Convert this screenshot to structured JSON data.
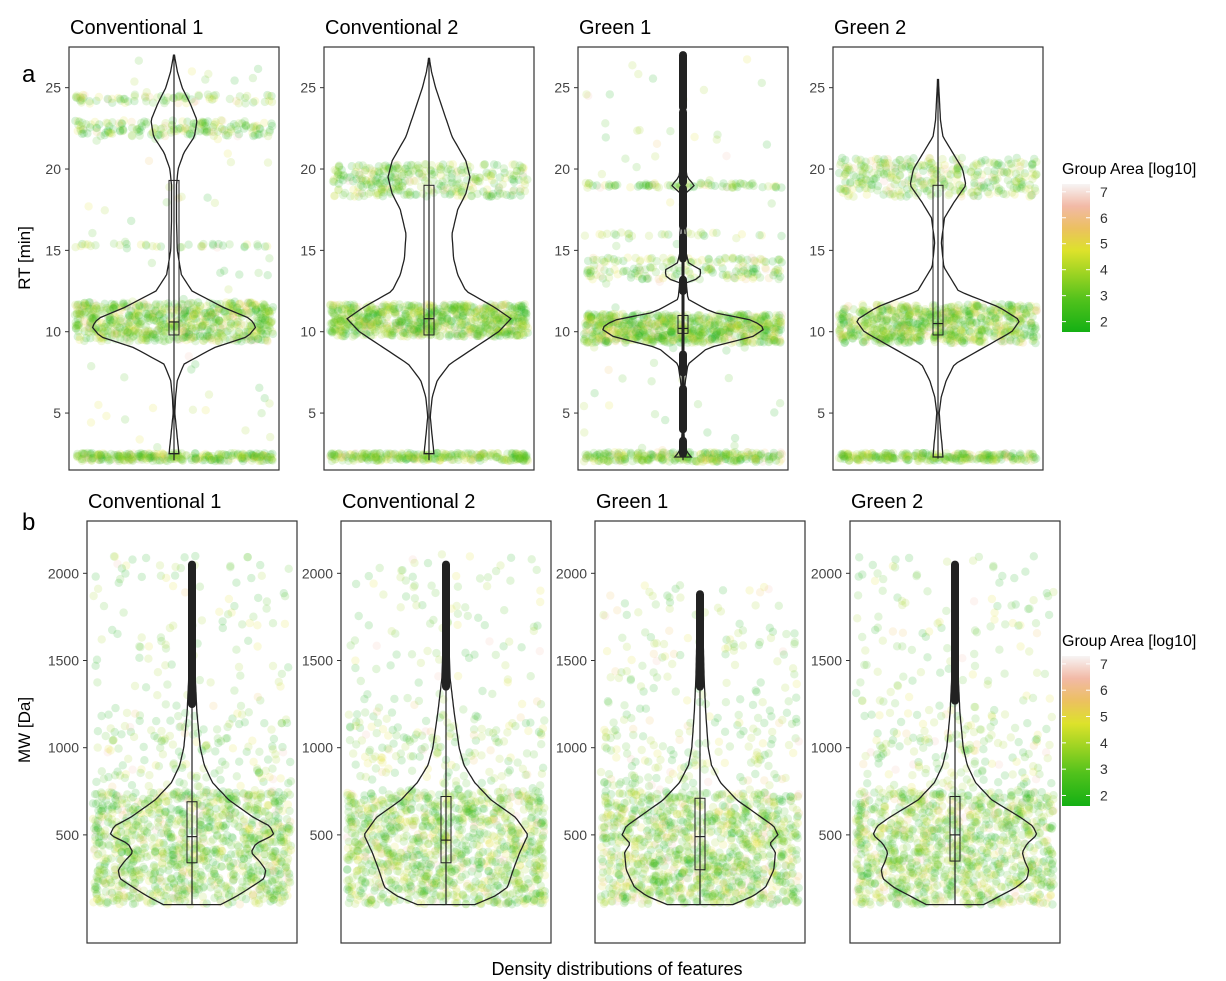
{
  "figure": {
    "caption": "Density distributions of features"
  },
  "colors": {
    "panel_border": "#333333",
    "violin": "#222222",
    "gradient": [
      "#14b014",
      "#52c21c",
      "#9fd423",
      "#dde22b",
      "#ecc060",
      "#f2b9a6",
      "#f7f4f4"
    ]
  },
  "chart_data": [
    {
      "type": "violin-jitter",
      "panel_letter": "a",
      "ylabel": "RT [min]",
      "ylim": [
        1.5,
        27.5
      ],
      "yticks": [
        5,
        10,
        15,
        20,
        25
      ],
      "grid": false,
      "legend_position": "right",
      "legend": {
        "title": "Group Area [log10]",
        "ticks": [
          2,
          3,
          4,
          5,
          6,
          7
        ],
        "range": [
          1.6,
          7.3
        ]
      },
      "facets": [
        {
          "title": "Conventional 1",
          "range": [
            2.1,
            27
          ],
          "bands": [
            {
              "y": 2.3,
              "half": 0.25,
              "w": 0.2
            },
            {
              "y": 10.6,
              "half": 1.2,
              "w": 0.55
            },
            {
              "y": 22.5,
              "half": 0.5,
              "w": 0.12
            },
            {
              "y": 24.3,
              "half": 0.3,
              "w": 0.06
            },
            {
              "y": 15.3,
              "half": 0.12,
              "w": 0.02
            }
          ],
          "median": 10.6,
          "q1": 9.8,
          "q3": 19.3,
          "violin": [
            [
              2.5,
              0.06
            ],
            [
              3,
              0.05
            ],
            [
              4,
              0.03
            ],
            [
              5,
              0.01
            ],
            [
              6,
              0.02
            ],
            [
              7,
              0.04
            ],
            [
              8,
              0.12
            ],
            [
              9,
              0.48
            ],
            [
              9.7,
              0.9
            ],
            [
              10.3,
              1.0
            ],
            [
              10.8,
              0.93
            ],
            [
              11.5,
              0.6
            ],
            [
              12.5,
              0.22
            ],
            [
              13.5,
              0.09
            ],
            [
              15,
              0.04
            ],
            [
              17,
              0.03
            ],
            [
              19,
              0.03
            ],
            [
              20,
              0.05
            ],
            [
              21,
              0.12
            ],
            [
              22,
              0.25
            ],
            [
              23,
              0.28
            ],
            [
              24,
              0.2
            ],
            [
              25,
              0.1
            ],
            [
              26,
              0.04
            ],
            [
              27,
              0.005
            ]
          ]
        },
        {
          "title": "Conventional 2",
          "range": [
            2.1,
            26.8
          ],
          "bands": [
            {
              "y": 2.3,
              "half": 0.25,
              "w": 0.2
            },
            {
              "y": 10.7,
              "half": 1.0,
              "w": 0.55
            },
            {
              "y": 19.3,
              "half": 1.0,
              "w": 0.3
            },
            {
              "y": 13.5,
              "half": 0.22,
              "w": 0.06
            },
            {
              "y": 23.2,
              "half": 0.3,
              "w": 0.08
            },
            {
              "y": 21.5,
              "half": 0.25,
              "w": 0.04
            }
          ],
          "median": 10.8,
          "q1": 9.8,
          "q3": 19.0,
          "violin": [
            [
              2.5,
              0.06
            ],
            [
              3,
              0.05
            ],
            [
              4,
              0.03
            ],
            [
              4.8,
              0.015
            ],
            [
              6,
              0.04
            ],
            [
              7,
              0.1
            ],
            [
              8,
              0.25
            ],
            [
              9,
              0.55
            ],
            [
              10,
              0.85
            ],
            [
              10.8,
              1.0
            ],
            [
              11.5,
              0.8
            ],
            [
              12.5,
              0.45
            ],
            [
              13.5,
              0.35
            ],
            [
              14.5,
              0.3
            ],
            [
              16,
              0.28
            ],
            [
              17.5,
              0.35
            ],
            [
              18.5,
              0.45
            ],
            [
              19.5,
              0.5
            ],
            [
              20.5,
              0.45
            ],
            [
              22,
              0.28
            ],
            [
              23.5,
              0.18
            ],
            [
              25,
              0.08
            ],
            [
              26,
              0.03
            ],
            [
              26.8,
              0.005
            ]
          ]
        },
        {
          "title": "Green 1",
          "range": [
            2.1,
            27
          ],
          "bands": [
            {
              "y": 2.3,
              "half": 0.3,
              "w": 0.2
            },
            {
              "y": 10.2,
              "half": 0.9,
              "w": 0.55
            },
            {
              "y": 19.0,
              "half": 0.15,
              "w": 0.06
            },
            {
              "y": 13.6,
              "half": 0.4,
              "w": 0.08
            },
            {
              "y": 14.4,
              "half": 0.15,
              "w": 0.04
            },
            {
              "y": 16.0,
              "half": 0.12,
              "w": 0.02
            }
          ],
          "median": 10.2,
          "q1": 9.9,
          "q3": 11.0,
          "violin": [
            [
              2.3,
              0.1
            ],
            [
              2.6,
              0.05
            ],
            [
              3,
              0.02
            ],
            [
              4,
              0.01
            ],
            [
              6,
              0.01
            ],
            [
              7,
              0.03
            ],
            [
              8,
              0.06
            ],
            [
              9,
              0.3
            ],
            [
              9.7,
              0.85
            ],
            [
              10.2,
              1.0
            ],
            [
              10.7,
              0.85
            ],
            [
              11.2,
              0.35
            ],
            [
              12,
              0.06
            ],
            [
              13,
              0.04
            ],
            [
              13.3,
              0.2
            ],
            [
              13.8,
              0.22
            ],
            [
              14.2,
              0.07
            ],
            [
              15,
              0.03
            ],
            [
              16,
              0.04
            ],
            [
              17,
              0.02
            ],
            [
              18.5,
              0.03
            ],
            [
              19,
              0.14
            ],
            [
              19.5,
              0.05
            ],
            [
              20.5,
              0.02
            ],
            [
              22,
              0.02
            ],
            [
              25,
              0.015
            ],
            [
              27,
              0.01
            ]
          ]
        },
        {
          "title": "Green 2",
          "range": [
            2.2,
            25.5
          ],
          "bands": [
            {
              "y": 2.3,
              "half": 0.25,
              "w": 0.2
            },
            {
              "y": 10.5,
              "half": 1.2,
              "w": 0.55
            },
            {
              "y": 19.5,
              "half": 1.2,
              "w": 0.4
            }
          ],
          "median": 10.5,
          "q1": 9.8,
          "q3": 19.0,
          "violin": [
            [
              2.3,
              0.06
            ],
            [
              3,
              0.05
            ],
            [
              4,
              0.03
            ],
            [
              5,
              0.015
            ],
            [
              6,
              0.04
            ],
            [
              7,
              0.1
            ],
            [
              8,
              0.2
            ],
            [
              9,
              0.55
            ],
            [
              10,
              0.9
            ],
            [
              10.7,
              1.0
            ],
            [
              11.5,
              0.75
            ],
            [
              12.5,
              0.25
            ],
            [
              14,
              0.07
            ],
            [
              15.5,
              0.04
            ],
            [
              17,
              0.08
            ],
            [
              18,
              0.2
            ],
            [
              19,
              0.34
            ],
            [
              20,
              0.3
            ],
            [
              21,
              0.18
            ],
            [
              22,
              0.06
            ],
            [
              23,
              0.03
            ],
            [
              24,
              0.02
            ],
            [
              25.5,
              0.005
            ]
          ]
        }
      ]
    },
    {
      "type": "violin-jitter",
      "panel_letter": "b",
      "ylabel": "MW [Da]",
      "ylim": [
        -120,
        2300
      ],
      "yticks": [
        500,
        1000,
        1500,
        2000
      ],
      "grid": false,
      "legend_position": "right",
      "legend": {
        "title": "Group Area [log10]",
        "ticks": [
          2,
          3,
          4,
          5,
          6,
          7
        ],
        "range": [
          1.6,
          7.3
        ]
      },
      "facets": [
        {
          "title": "Conventional 1",
          "range": [
            100,
            2050
          ],
          "median": 490,
          "q1": 340,
          "q3": 690,
          "whisker_top": 1250,
          "outliers": [
            1250,
            2050
          ],
          "violin": [
            [
              100,
              0.35
            ],
            [
              150,
              0.55
            ],
            [
              200,
              0.72
            ],
            [
              250,
              0.88
            ],
            [
              300,
              0.9
            ],
            [
              350,
              0.82
            ],
            [
              400,
              0.72
            ],
            [
              450,
              0.78
            ],
            [
              500,
              1.0
            ],
            [
              550,
              0.95
            ],
            [
              600,
              0.75
            ],
            [
              700,
              0.45
            ],
            [
              800,
              0.25
            ],
            [
              900,
              0.15
            ],
            [
              1000,
              0.1
            ],
            [
              1200,
              0.06
            ],
            [
              1400,
              0.04
            ],
            [
              1600,
              0.025
            ],
            [
              1800,
              0.02
            ],
            [
              2050,
              0.005
            ]
          ]
        },
        {
          "title": "Conventional 2",
          "range": [
            100,
            2050
          ],
          "median": 470,
          "q1": 340,
          "q3": 720,
          "whisker_top": 1350,
          "outliers": [
            1350,
            2050
          ],
          "violin": [
            [
              100,
              0.35
            ],
            [
              150,
              0.6
            ],
            [
              200,
              0.75
            ],
            [
              300,
              0.82
            ],
            [
              400,
              0.9
            ],
            [
              500,
              1.0
            ],
            [
              600,
              0.85
            ],
            [
              700,
              0.55
            ],
            [
              800,
              0.35
            ],
            [
              900,
              0.22
            ],
            [
              1000,
              0.16
            ],
            [
              1200,
              0.1
            ],
            [
              1400,
              0.05
            ],
            [
              1600,
              0.035
            ],
            [
              1800,
              0.02
            ],
            [
              2050,
              0.005
            ]
          ]
        },
        {
          "title": "Green 1",
          "range": [
            100,
            1880
          ],
          "median": 490,
          "q1": 300,
          "q3": 710,
          "whisker_top": 1350,
          "outliers": [
            1350,
            1880
          ],
          "violin": [
            [
              100,
              0.4
            ],
            [
              150,
              0.65
            ],
            [
              200,
              0.8
            ],
            [
              300,
              0.9
            ],
            [
              400,
              0.92
            ],
            [
              450,
              0.85
            ],
            [
              500,
              0.95
            ],
            [
              550,
              0.9
            ],
            [
              600,
              0.75
            ],
            [
              700,
              0.45
            ],
            [
              800,
              0.25
            ],
            [
              900,
              0.14
            ],
            [
              1000,
              0.1
            ],
            [
              1200,
              0.07
            ],
            [
              1400,
              0.05
            ],
            [
              1600,
              0.04
            ],
            [
              1750,
              0.02
            ],
            [
              1880,
              0.005
            ]
          ]
        },
        {
          "title": "Green 2",
          "range": [
            100,
            2050
          ],
          "median": 500,
          "q1": 350,
          "q3": 720,
          "whisker_top": 1270,
          "outliers": [
            1270,
            2050
          ],
          "violin": [
            [
              100,
              0.35
            ],
            [
              150,
              0.55
            ],
            [
              200,
              0.75
            ],
            [
              250,
              0.88
            ],
            [
              300,
              0.9
            ],
            [
              350,
              0.85
            ],
            [
              400,
              0.82
            ],
            [
              450,
              0.88
            ],
            [
              500,
              1.0
            ],
            [
              550,
              0.95
            ],
            [
              600,
              0.8
            ],
            [
              700,
              0.45
            ],
            [
              800,
              0.25
            ],
            [
              900,
              0.15
            ],
            [
              1000,
              0.1
            ],
            [
              1200,
              0.06
            ],
            [
              1400,
              0.04
            ],
            [
              1600,
              0.03
            ],
            [
              1800,
              0.02
            ],
            [
              2050,
              0.005
            ]
          ]
        }
      ]
    }
  ]
}
